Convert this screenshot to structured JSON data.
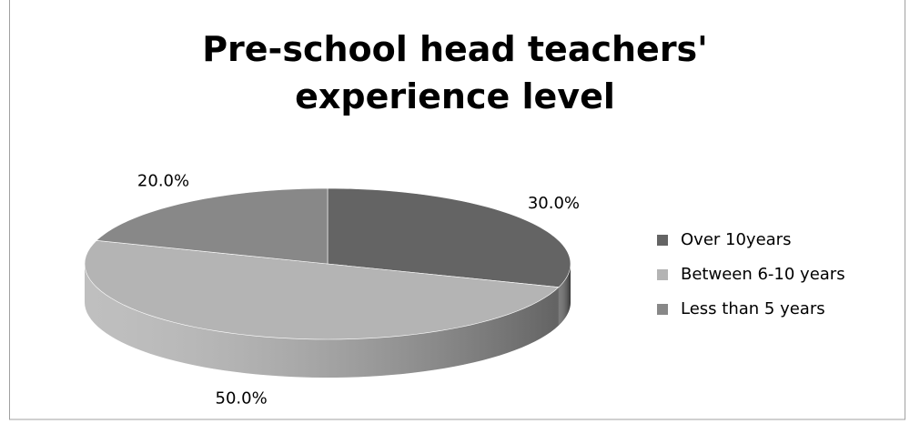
{
  "chart_data": {
    "type": "pie",
    "title": "Pre-school head teachers' experience level",
    "categories": [
      "Over 10years",
      "Between 6-10 years",
      "Less than 5 years"
    ],
    "values": [
      30,
      50,
      20
    ],
    "value_labels": [
      "30.0%",
      "50.0%",
      "20.0%"
    ],
    "colors": [
      "#646464",
      "#b4b4b4",
      "#888888"
    ],
    "legend": "right"
  }
}
